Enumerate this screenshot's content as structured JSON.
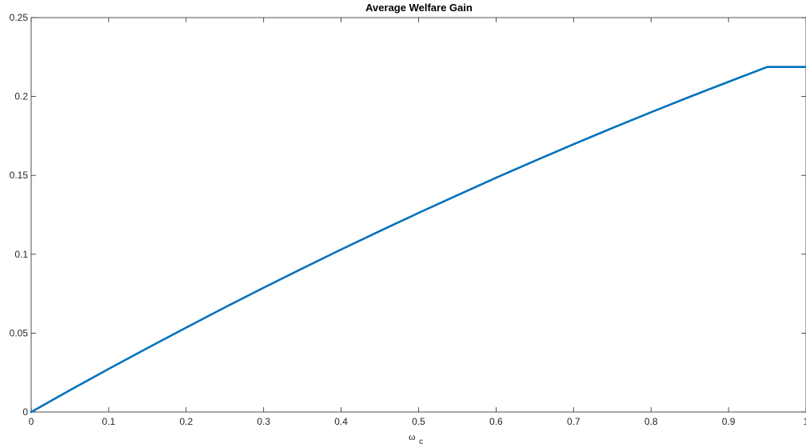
{
  "chart_data": {
    "type": "line",
    "title": "Average Welfare Gain",
    "xlabel": "ω",
    "xlabel_subscript": "c",
    "ylabel": "",
    "xlim": [
      0,
      1
    ],
    "ylim": [
      0,
      0.25
    ],
    "xticks": [
      0,
      0.1,
      0.2,
      0.3,
      0.4,
      0.5,
      0.6,
      0.7,
      0.8,
      0.9,
      1
    ],
    "xtick_labels": [
      "0",
      "0.1",
      "0.2",
      "0.3",
      "0.4",
      "0.5",
      "0.6",
      "0.7",
      "0.8",
      "0.9",
      "1"
    ],
    "yticks": [
      0,
      0.05,
      0.1,
      0.15,
      0.2,
      0.25
    ],
    "ytick_labels": [
      "0",
      "0.05",
      "0.1",
      "0.15",
      "0.2",
      "0.25"
    ],
    "grid": false,
    "line_color": "#0072BD",
    "series": [
      {
        "x": [
          0,
          0.05,
          0.1,
          0.15,
          0.2,
          0.25,
          0.3,
          0.35,
          0.4,
          0.45,
          0.5,
          0.55,
          0.6,
          0.65,
          0.7,
          0.75,
          0.8,
          0.85,
          0.9,
          0.95,
          1.0
        ],
        "values": [
          0,
          0.0138,
          0.0273,
          0.0405,
          0.0535,
          0.0663,
          0.0788,
          0.091,
          0.103,
          0.1147,
          0.1262,
          0.1374,
          0.1485,
          0.1592,
          0.1697,
          0.18,
          0.19,
          0.1998,
          0.2093,
          0.2187,
          0.218
        ]
      }
    ]
  }
}
